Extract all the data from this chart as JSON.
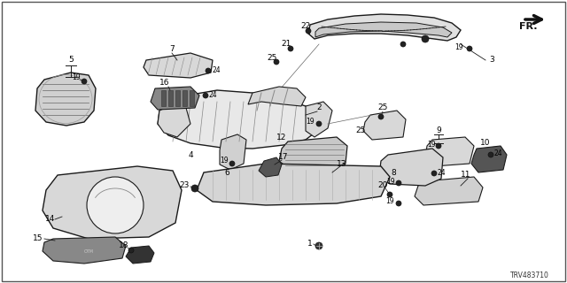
{
  "background_color": "#ffffff",
  "diagram_code": "TRV483710",
  "line_color": "#1a1a1a",
  "text_color": "#000000",
  "font_size": 6.5,
  "border_color": "#333333",
  "fr_arrow_color": "#111111"
}
